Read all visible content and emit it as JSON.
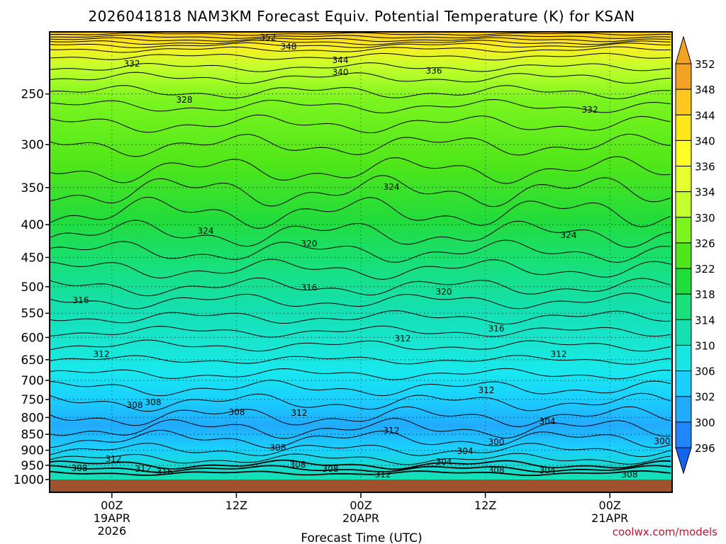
{
  "chart_data": {
    "type": "heatmap",
    "title": "2026041818 NAM3KM Forecast Equiv. Potential Temperature (K) for KSAN",
    "xlabel": "Forecast Time (UTC)",
    "ylabel": "",
    "y_scale": "log-pressure (hPa), inverted",
    "ylim": [
      1000,
      200
    ],
    "y_ticks": [
      "250",
      "300",
      "350",
      "400",
      "450",
      "500",
      "550",
      "600",
      "650",
      "700",
      "750",
      "800",
      "850",
      "900",
      "950",
      "1000"
    ],
    "x_ticks": [
      {
        "label": "00Z",
        "sub1": "19APR",
        "sub2": "2026",
        "hour": 6
      },
      {
        "label": "12Z",
        "sub1": "",
        "sub2": "",
        "hour": 18
      },
      {
        "label": "00Z",
        "sub1": "20APR",
        "sub2": "",
        "hour": 30
      },
      {
        "label": "12Z",
        "sub1": "",
        "sub2": "",
        "hour": 42
      },
      {
        "label": "00Z",
        "sub1": "21APR",
        "sub2": "",
        "hour": 54
      }
    ],
    "xlim": [
      0,
      60
    ],
    "grid": true,
    "colorbar": {
      "labels": [
        "352",
        "348",
        "344",
        "340",
        "336",
        "334",
        "330",
        "326",
        "322",
        "318",
        "314",
        "310",
        "306",
        "302",
        "300",
        "296"
      ],
      "colors": [
        "#f2a324",
        "#ffc81e",
        "#ffe619",
        "#ffff26",
        "#e6ff2e",
        "#c2ff2c",
        "#7cf51e",
        "#4ee61a",
        "#1fde3a",
        "#18e07a",
        "#14e0b2",
        "#18e6e0",
        "#1ad0ff",
        "#22aaff",
        "#1f86ff",
        "#1464f0"
      ]
    },
    "contour_labels": [
      "352",
      "348",
      "344",
      "340",
      "336",
      "332",
      "328",
      "332",
      "324",
      "324",
      "324",
      "320",
      "320",
      "316",
      "316",
      "316",
      "312",
      "312",
      "312",
      "312",
      "308",
      "308",
      "308",
      "312",
      "312",
      "308",
      "304",
      "304",
      "304",
      "300",
      "300",
      "312",
      "312",
      "316",
      "308",
      "312",
      "308",
      "308",
      "304",
      "308",
      "308"
    ],
    "ground_color": "#a0522d"
  },
  "credit": "coolwx.com/models"
}
